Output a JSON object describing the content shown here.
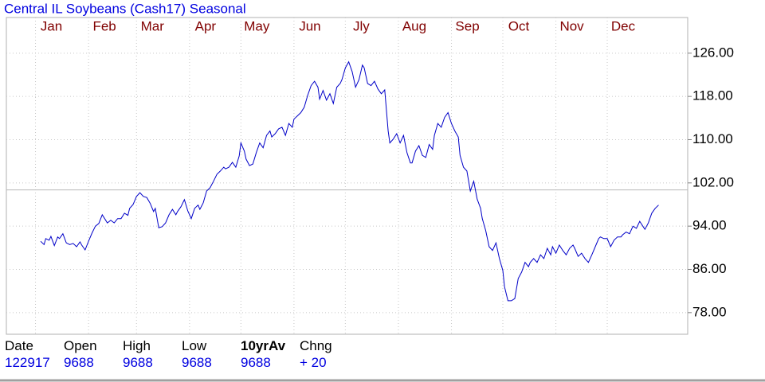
{
  "chart_data": {
    "type": "line",
    "title": "Central IL Soybeans (Cash17) Seasonal",
    "color": "#0000c8",
    "xlim": [
      -17,
      381
    ],
    "xticks": [
      {
        "value": 0,
        "label": "Jan"
      },
      {
        "value": 31,
        "label": "Feb"
      },
      {
        "value": 59,
        "label": "Mar"
      },
      {
        "value": 90,
        "label": "Apr"
      },
      {
        "value": 120,
        "label": "May"
      },
      {
        "value": 151,
        "label": "Jun"
      },
      {
        "value": 181,
        "label": "Jly"
      },
      {
        "value": 212,
        "label": "Aug"
      },
      {
        "value": 243,
        "label": "Sep"
      },
      {
        "value": 273,
        "label": "Oct"
      },
      {
        "value": 304,
        "label": "Nov"
      },
      {
        "value": 334,
        "label": "Dec"
      }
    ],
    "ylim": [
      74,
      132.6
    ],
    "yticks": [
      {
        "value": 78,
        "label": "78.00"
      },
      {
        "value": 86,
        "label": "86.00"
      },
      {
        "value": 94,
        "label": "94.00"
      },
      {
        "value": 102,
        "label": "102.00"
      },
      {
        "value": 110,
        "label": "110.00"
      },
      {
        "value": 118,
        "label": "118.00"
      },
      {
        "value": 126,
        "label": "126.00"
      }
    ],
    "grid": true,
    "reference_line": 100.7,
    "x": [
      3,
      5,
      6,
      8,
      9,
      11,
      13,
      14,
      16,
      18,
      20,
      22,
      24,
      26,
      27,
      29,
      31,
      33,
      35,
      37,
      39,
      41,
      42,
      44,
      46,
      48,
      50,
      52,
      54,
      55,
      57,
      59,
      61,
      63,
      65,
      67,
      69,
      70,
      72,
      74,
      76,
      78,
      80,
      82,
      83,
      85,
      87,
      89,
      91,
      93,
      95,
      96,
      98,
      100,
      102,
      104,
      106,
      108,
      110,
      111,
      113,
      115,
      117,
      119,
      120,
      122,
      123,
      125,
      127,
      129,
      131,
      133,
      135,
      137,
      138,
      140,
      142,
      144,
      146,
      148,
      150,
      151,
      153,
      155,
      157,
      159,
      161,
      163,
      165,
      166,
      168,
      170,
      172,
      174,
      176,
      178,
      179,
      181,
      183,
      185,
      187,
      189,
      191,
      192,
      194,
      196,
      198,
      200,
      202,
      204,
      206,
      207,
      209,
      211,
      213,
      215,
      217,
      219,
      220,
      222,
      224,
      226,
      228,
      230,
      232,
      233,
      235,
      237,
      239,
      241,
      243,
      245,
      247,
      248,
      250,
      252,
      254,
      256,
      258,
      260,
      261,
      263,
      265,
      267,
      269,
      271,
      273,
      274,
      276,
      278,
      280,
      282,
      284,
      286,
      288,
      289,
      291,
      293,
      295,
      297,
      299,
      301,
      302,
      304,
      306,
      308,
      310,
      312,
      314,
      315,
      317,
      319,
      321,
      323,
      325,
      327,
      329,
      330,
      332,
      334,
      336,
      338,
      340,
      342,
      343,
      345,
      347,
      349,
      351,
      353,
      355,
      356,
      358,
      360,
      362,
      364
    ],
    "values": [
      91.2,
      90.6,
      91.7,
      91.4,
      92.1,
      90.4,
      92.0,
      91.7,
      92.6,
      90.9,
      90.6,
      90.8,
      90.2,
      91.1,
      90.5,
      89.6,
      91.2,
      92.7,
      94.0,
      94.5,
      96.1,
      95.1,
      94.6,
      95.1,
      94.6,
      95.4,
      95.4,
      96.4,
      96.0,
      97.3,
      98.0,
      99.5,
      100.2,
      99.5,
      99.3,
      98.2,
      96.7,
      97.3,
      93.7,
      93.9,
      94.6,
      96.1,
      97.1,
      96.1,
      96.7,
      97.6,
      98.9,
      96.8,
      95.4,
      97.3,
      97.9,
      97.1,
      98.3,
      100.5,
      101.1,
      102.3,
      103.6,
      104.2,
      104.9,
      104.6,
      104.9,
      105.8,
      104.9,
      107.0,
      109.4,
      107.9,
      106.4,
      105.2,
      105.5,
      107.6,
      109.4,
      108.5,
      110.8,
      111.6,
      110.5,
      111.1,
      112.0,
      112.3,
      110.8,
      113.0,
      112.3,
      113.8,
      114.4,
      115.0,
      116.0,
      118.2,
      120.0,
      120.8,
      119.7,
      117.5,
      119.1,
      117.3,
      118.5,
      116.7,
      119.7,
      120.4,
      121.1,
      123.3,
      124.4,
      122.6,
      119.7,
      121.1,
      123.8,
      123.3,
      120.4,
      120.0,
      120.8,
      119.4,
      118.5,
      119.2,
      111.6,
      109.4,
      110.1,
      111.1,
      109.4,
      110.8,
      107.6,
      105.7,
      105.7,
      107.9,
      108.9,
      107.1,
      106.7,
      109.1,
      108.2,
      110.8,
      113.0,
      112.3,
      114.1,
      115.0,
      113.0,
      111.6,
      110.5,
      107.1,
      104.9,
      104.2,
      100.5,
      102.3,
      99.0,
      97.3,
      95.4,
      93.2,
      90.2,
      89.5,
      90.9,
      88.0,
      85.8,
      82.8,
      80.2,
      80.2,
      80.6,
      84.3,
      85.5,
      87.3,
      86.5,
      87.3,
      88.0,
      87.3,
      88.7,
      88.0,
      89.9,
      88.7,
      90.2,
      89.0,
      90.5,
      89.5,
      88.7,
      89.9,
      90.5,
      89.9,
      88.4,
      89.0,
      88.0,
      87.3,
      88.7,
      90.2,
      91.7,
      92.0,
      91.7,
      91.7,
      90.2,
      91.4,
      92.0,
      92.0,
      92.4,
      92.9,
      92.6,
      94.0,
      93.6,
      94.9,
      93.9,
      93.4,
      94.6,
      96.4,
      97.3,
      97.9
    ]
  },
  "footer": {
    "headers": [
      "Date",
      "Open",
      "High",
      "Low",
      "10yrAv",
      "Chng"
    ],
    "values": [
      "122917",
      "9688",
      "9688",
      "9688",
      "9688",
      "+ 20"
    ]
  }
}
